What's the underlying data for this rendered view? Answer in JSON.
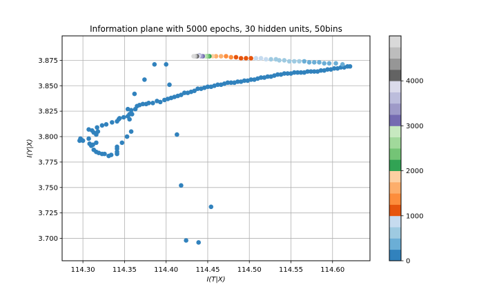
{
  "chart_data": {
    "type": "scatter",
    "title": "Information plane with 5000 epochs, 30 hidden units, 50bins",
    "xlabel": "I(T|X)",
    "ylabel": "I(Y|X)",
    "xlim": [
      114.275,
      114.645
    ],
    "ylim": [
      3.678,
      3.899
    ],
    "x_ticks": [
      "114.30",
      "114.35",
      "114.40",
      "114.45",
      "114.50",
      "114.55",
      "114.60"
    ],
    "x_tick_values": [
      114.3,
      114.35,
      114.4,
      114.45,
      114.5,
      114.55,
      114.6
    ],
    "y_ticks": [
      "3.700",
      "3.725",
      "3.750",
      "3.775",
      "3.800",
      "3.825",
      "3.850",
      "3.875"
    ],
    "y_tick_values": [
      3.7,
      3.725,
      3.75,
      3.775,
      3.8,
      3.825,
      3.85,
      3.875
    ],
    "grid": true,
    "colorbar": {
      "min": 0,
      "max": 5000,
      "ticks": [
        "0",
        "1000",
        "2000",
        "3000",
        "4000"
      ],
      "tick_values": [
        0,
        1000,
        2000,
        3000,
        4000
      ],
      "colors": [
        "#3182bd",
        "#6baed6",
        "#9ecae1",
        "#c6dbef",
        "#e6550d",
        "#fd8d3c",
        "#fdae6b",
        "#fdd0a2",
        "#31a354",
        "#74c476",
        "#a1d99b",
        "#c7e9c0",
        "#756bb1",
        "#9e9ac8",
        "#bcbddc",
        "#dadaeb",
        "#636363",
        "#969696",
        "#bdbdbd",
        "#d9d9d9"
      ]
    },
    "points": [
      [
        114.296,
        3.796,
        0
      ],
      [
        114.298,
        3.797,
        0
      ],
      [
        114.3,
        3.796,
        0
      ],
      [
        114.297,
        3.798,
        0
      ],
      [
        114.307,
        3.798,
        0
      ],
      [
        114.308,
        3.793,
        0
      ],
      [
        114.31,
        3.791,
        0
      ],
      [
        114.312,
        3.792,
        0
      ],
      [
        114.316,
        3.794,
        0
      ],
      [
        114.313,
        3.787,
        0
      ],
      [
        114.316,
        3.785,
        0
      ],
      [
        114.319,
        3.784,
        0
      ],
      [
        114.323,
        3.783,
        0
      ],
      [
        114.326,
        3.783,
        0
      ],
      [
        114.331,
        3.781,
        0
      ],
      [
        114.334,
        3.782,
        0
      ],
      [
        114.341,
        3.783,
        0
      ],
      [
        114.341,
        3.785,
        0
      ],
      [
        114.341,
        3.788,
        0
      ],
      [
        114.341,
        3.79,
        0
      ],
      [
        114.347,
        3.794,
        0
      ],
      [
        114.353,
        3.8,
        0
      ],
      [
        114.358,
        3.805,
        0
      ],
      [
        114.307,
        3.807,
        0
      ],
      [
        114.311,
        3.806,
        0
      ],
      [
        114.313,
        3.804,
        0
      ],
      [
        114.316,
        3.802,
        0
      ],
      [
        114.318,
        3.805,
        0
      ],
      [
        114.317,
        3.809,
        0
      ],
      [
        114.323,
        3.811,
        0
      ],
      [
        114.328,
        3.812,
        0
      ],
      [
        114.335,
        3.814,
        0
      ],
      [
        114.341,
        3.815,
        0
      ],
      [
        114.343,
        3.817,
        0
      ],
      [
        114.344,
        3.818,
        0
      ],
      [
        114.349,
        3.819,
        0
      ],
      [
        114.354,
        3.82,
        0
      ],
      [
        114.356,
        3.822,
        0
      ],
      [
        114.358,
        3.823,
        0
      ],
      [
        114.359,
        3.822,
        0
      ],
      [
        114.354,
        3.827,
        0
      ],
      [
        114.358,
        3.826,
        0
      ],
      [
        114.356,
        3.817,
        0
      ],
      [
        114.363,
        3.827,
        0
      ],
      [
        114.365,
        3.83,
        0
      ],
      [
        114.368,
        3.831,
        0
      ],
      [
        114.372,
        3.832,
        0
      ],
      [
        114.376,
        3.832,
        0
      ],
      [
        114.379,
        3.833,
        0
      ],
      [
        114.384,
        3.833,
        0
      ],
      [
        114.389,
        3.835,
        0
      ],
      [
        114.393,
        3.834,
        0
      ],
      [
        114.398,
        3.836,
        0
      ],
      [
        114.402,
        3.837,
        0
      ],
      [
        114.406,
        3.838,
        0
      ],
      [
        114.41,
        3.839,
        0
      ],
      [
        114.414,
        3.84,
        0
      ],
      [
        114.418,
        3.841,
        0
      ],
      [
        114.422,
        3.843,
        0
      ],
      [
        114.426,
        3.843,
        0
      ],
      [
        114.43,
        3.844,
        0
      ],
      [
        114.434,
        3.845,
        0
      ],
      [
        114.438,
        3.847,
        0
      ],
      [
        114.442,
        3.847,
        0
      ],
      [
        114.446,
        3.848,
        0
      ],
      [
        114.45,
        3.849,
        0
      ],
      [
        114.454,
        3.849,
        0
      ],
      [
        114.458,
        3.85,
        0
      ],
      [
        114.462,
        3.851,
        0
      ],
      [
        114.466,
        3.851,
        0
      ],
      [
        114.47,
        3.852,
        0
      ],
      [
        114.474,
        3.853,
        0
      ],
      [
        114.478,
        3.853,
        0
      ],
      [
        114.482,
        3.853,
        0
      ],
      [
        114.486,
        3.854,
        0
      ],
      [
        114.49,
        3.854,
        0
      ],
      [
        114.494,
        3.855,
        0
      ],
      [
        114.498,
        3.855,
        0
      ],
      [
        114.502,
        3.856,
        0
      ],
      [
        114.506,
        3.856,
        0
      ],
      [
        114.51,
        3.857,
        0
      ],
      [
        114.514,
        3.858,
        0
      ],
      [
        114.518,
        3.858,
        0
      ],
      [
        114.522,
        3.859,
        0
      ],
      [
        114.526,
        3.859,
        0
      ],
      [
        114.53,
        3.86,
        0
      ],
      [
        114.534,
        3.861,
        0
      ],
      [
        114.538,
        3.861,
        0
      ],
      [
        114.542,
        3.862,
        0
      ],
      [
        114.546,
        3.862,
        0
      ],
      [
        114.55,
        3.862,
        0
      ],
      [
        114.554,
        3.863,
        0
      ],
      [
        114.558,
        3.863,
        0
      ],
      [
        114.562,
        3.863,
        0
      ],
      [
        114.566,
        3.863,
        0
      ],
      [
        114.57,
        3.864,
        0
      ],
      [
        114.574,
        3.864,
        0
      ],
      [
        114.578,
        3.864,
        0
      ],
      [
        114.582,
        3.864,
        0
      ],
      [
        114.586,
        3.865,
        0
      ],
      [
        114.59,
        3.865,
        0
      ],
      [
        114.594,
        3.866,
        0
      ],
      [
        114.598,
        3.866,
        0
      ],
      [
        114.602,
        3.867,
        0
      ],
      [
        114.606,
        3.867,
        0
      ],
      [
        114.61,
        3.868,
        0
      ],
      [
        114.614,
        3.868,
        0
      ],
      [
        114.618,
        3.869,
        0
      ],
      [
        114.621,
        3.869,
        0
      ],
      [
        114.374,
        3.856,
        0
      ],
      [
        114.386,
        3.871,
        0
      ],
      [
        114.4,
        3.871,
        0
      ],
      [
        114.404,
        3.851,
        0
      ],
      [
        114.362,
        3.842,
        0
      ],
      [
        114.413,
        3.802,
        0
      ],
      [
        114.418,
        3.752,
        0
      ],
      [
        114.454,
        3.731,
        0
      ],
      [
        114.424,
        3.698,
        0
      ],
      [
        114.439,
        3.696,
        0
      ],
      [
        114.612,
        3.871,
        300
      ],
      [
        114.604,
        3.872,
        300
      ],
      [
        114.596,
        3.872,
        300
      ],
      [
        114.59,
        3.872,
        300
      ],
      [
        114.584,
        3.873,
        400
      ],
      [
        114.578,
        3.873,
        400
      ],
      [
        114.572,
        3.873,
        400
      ],
      [
        114.566,
        3.874,
        400
      ],
      [
        114.56,
        3.874,
        500
      ],
      [
        114.554,
        3.874,
        500
      ],
      [
        114.548,
        3.874,
        500
      ],
      [
        114.542,
        3.875,
        600
      ],
      [
        114.536,
        3.875,
        600
      ],
      [
        114.532,
        3.876,
        700
      ],
      [
        114.526,
        3.876,
        700
      ],
      [
        114.52,
        3.876,
        800
      ],
      [
        114.514,
        3.877,
        900
      ],
      [
        114.508,
        3.877,
        950
      ],
      [
        114.502,
        3.877,
        1000
      ],
      [
        114.496,
        3.877,
        1050
      ],
      [
        114.49,
        3.877,
        1100
      ],
      [
        114.484,
        3.878,
        1150
      ],
      [
        114.478,
        3.878,
        1300
      ],
      [
        114.472,
        3.879,
        1400
      ],
      [
        114.466,
        3.879,
        1550
      ],
      [
        114.46,
        3.879,
        1700
      ],
      [
        114.456,
        3.879,
        1850
      ],
      [
        114.452,
        3.879,
        2050
      ],
      [
        114.45,
        3.879,
        2300
      ],
      [
        114.448,
        3.879,
        2550
      ],
      [
        114.446,
        3.879,
        2800
      ],
      [
        114.444,
        3.879,
        3100
      ],
      [
        114.442,
        3.879,
        3300
      ],
      [
        114.44,
        3.88,
        3600
      ],
      [
        114.439,
        3.879,
        3900
      ],
      [
        114.437,
        3.879,
        4200
      ],
      [
        114.435,
        3.879,
        4500
      ],
      [
        114.433,
        3.879,
        4800
      ]
    ]
  }
}
